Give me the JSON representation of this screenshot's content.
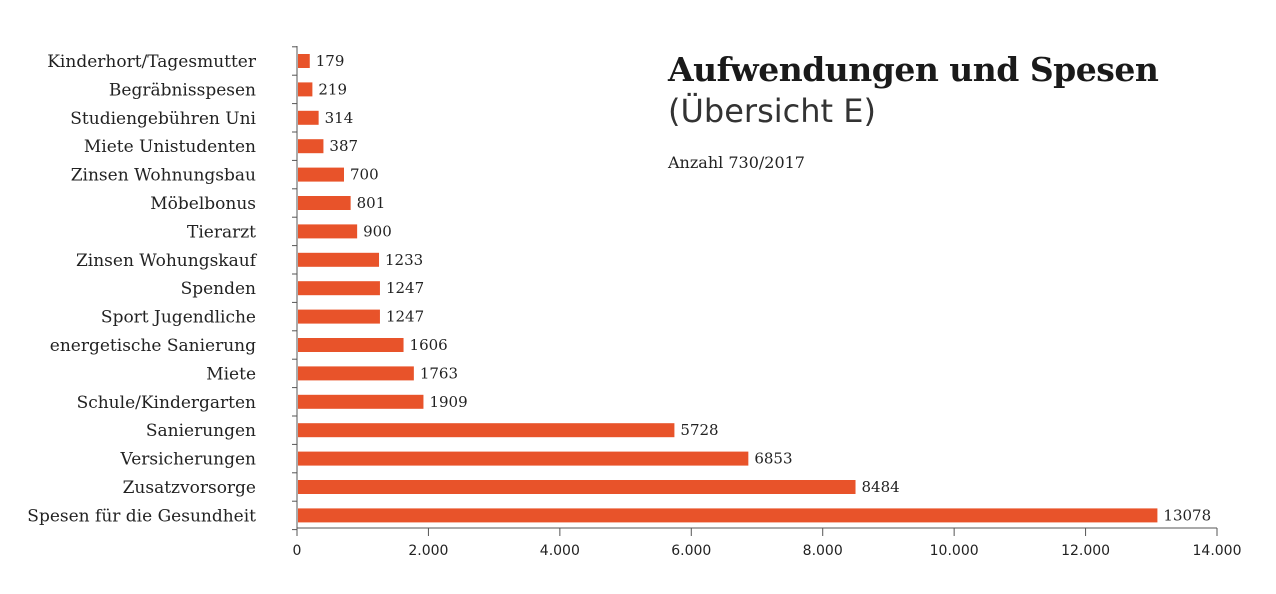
{
  "chart_data": {
    "type": "bar",
    "orientation": "horizontal",
    "title": "Aufwendungen und Spesen",
    "subtitle": "(Übersicht E)",
    "note": "Anzahl 730/2017",
    "categories": [
      "Kinderhort/Tagesmutter",
      "Begräbnisspesen",
      "Studiengebühren Uni",
      "Miete Unistudenten",
      "Zinsen Wohnungsbau",
      "Möbelbonus",
      "Tierarzt",
      "Zinsen Wohungskauf",
      "Spenden",
      "Sport Jugendliche",
      "energetische Sanierung",
      "Miete",
      "Schule/Kindergarten",
      "Sanierungen",
      "Versicherungen",
      "Zusatzvorsorge",
      "Spesen für die Gesundheit"
    ],
    "values": [
      179,
      219,
      314,
      387,
      700,
      801,
      900,
      1233,
      1247,
      1247,
      1606,
      1763,
      1909,
      5728,
      6853,
      8484,
      13078
    ],
    "xlim": [
      0,
      14000
    ],
    "xticks": [
      0,
      2000,
      4000,
      6000,
      8000,
      10000,
      12000,
      14000
    ],
    "xtick_labels": [
      "0",
      "2.000",
      "4.000",
      "6.000",
      "8.000",
      "10.000",
      "12.000",
      "14.000"
    ],
    "bar_color": "#e8532a",
    "grid": false
  }
}
